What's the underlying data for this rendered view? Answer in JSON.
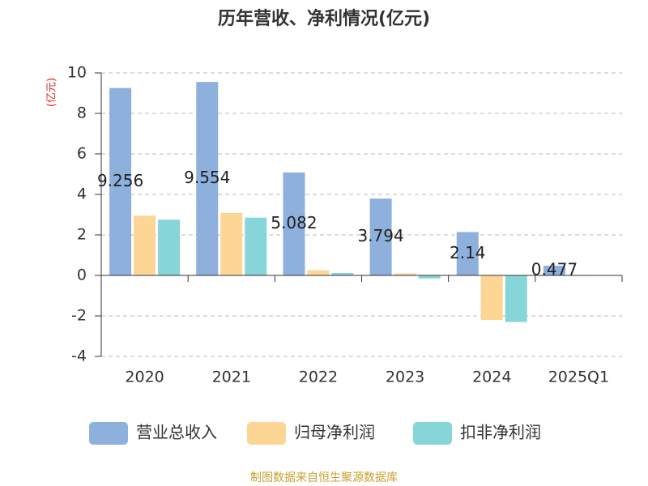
{
  "chart_data": {
    "type": "bar",
    "title": "历年营收、净利情况(亿元)",
    "y_label": "(亿元)",
    "categories": [
      "2020",
      "2021",
      "2022",
      "2023",
      "2024",
      "2025Q1"
    ],
    "series": [
      {
        "name": "营业总收入",
        "color": "#8eb0dc",
        "values": [
          9.256,
          9.554,
          5.082,
          3.794,
          2.14,
          0.477
        ],
        "data_labels": true
      },
      {
        "name": "归母净利润",
        "color": "#fdd696",
        "values": [
          2.95,
          3.08,
          0.25,
          0.1,
          -2.2,
          0.03
        ]
      },
      {
        "name": "扣非净利润",
        "color": "#86d5d8",
        "values": [
          2.75,
          2.85,
          0.12,
          -0.15,
          -2.3,
          0.02
        ]
      }
    ],
    "ylim": [
      -4,
      10
    ],
    "yticks": [
      -4,
      -2,
      0,
      2,
      4,
      6,
      8,
      10
    ],
    "grid": true,
    "legend": "bottom",
    "source": "制图数据来自恒生聚源数据库"
  }
}
